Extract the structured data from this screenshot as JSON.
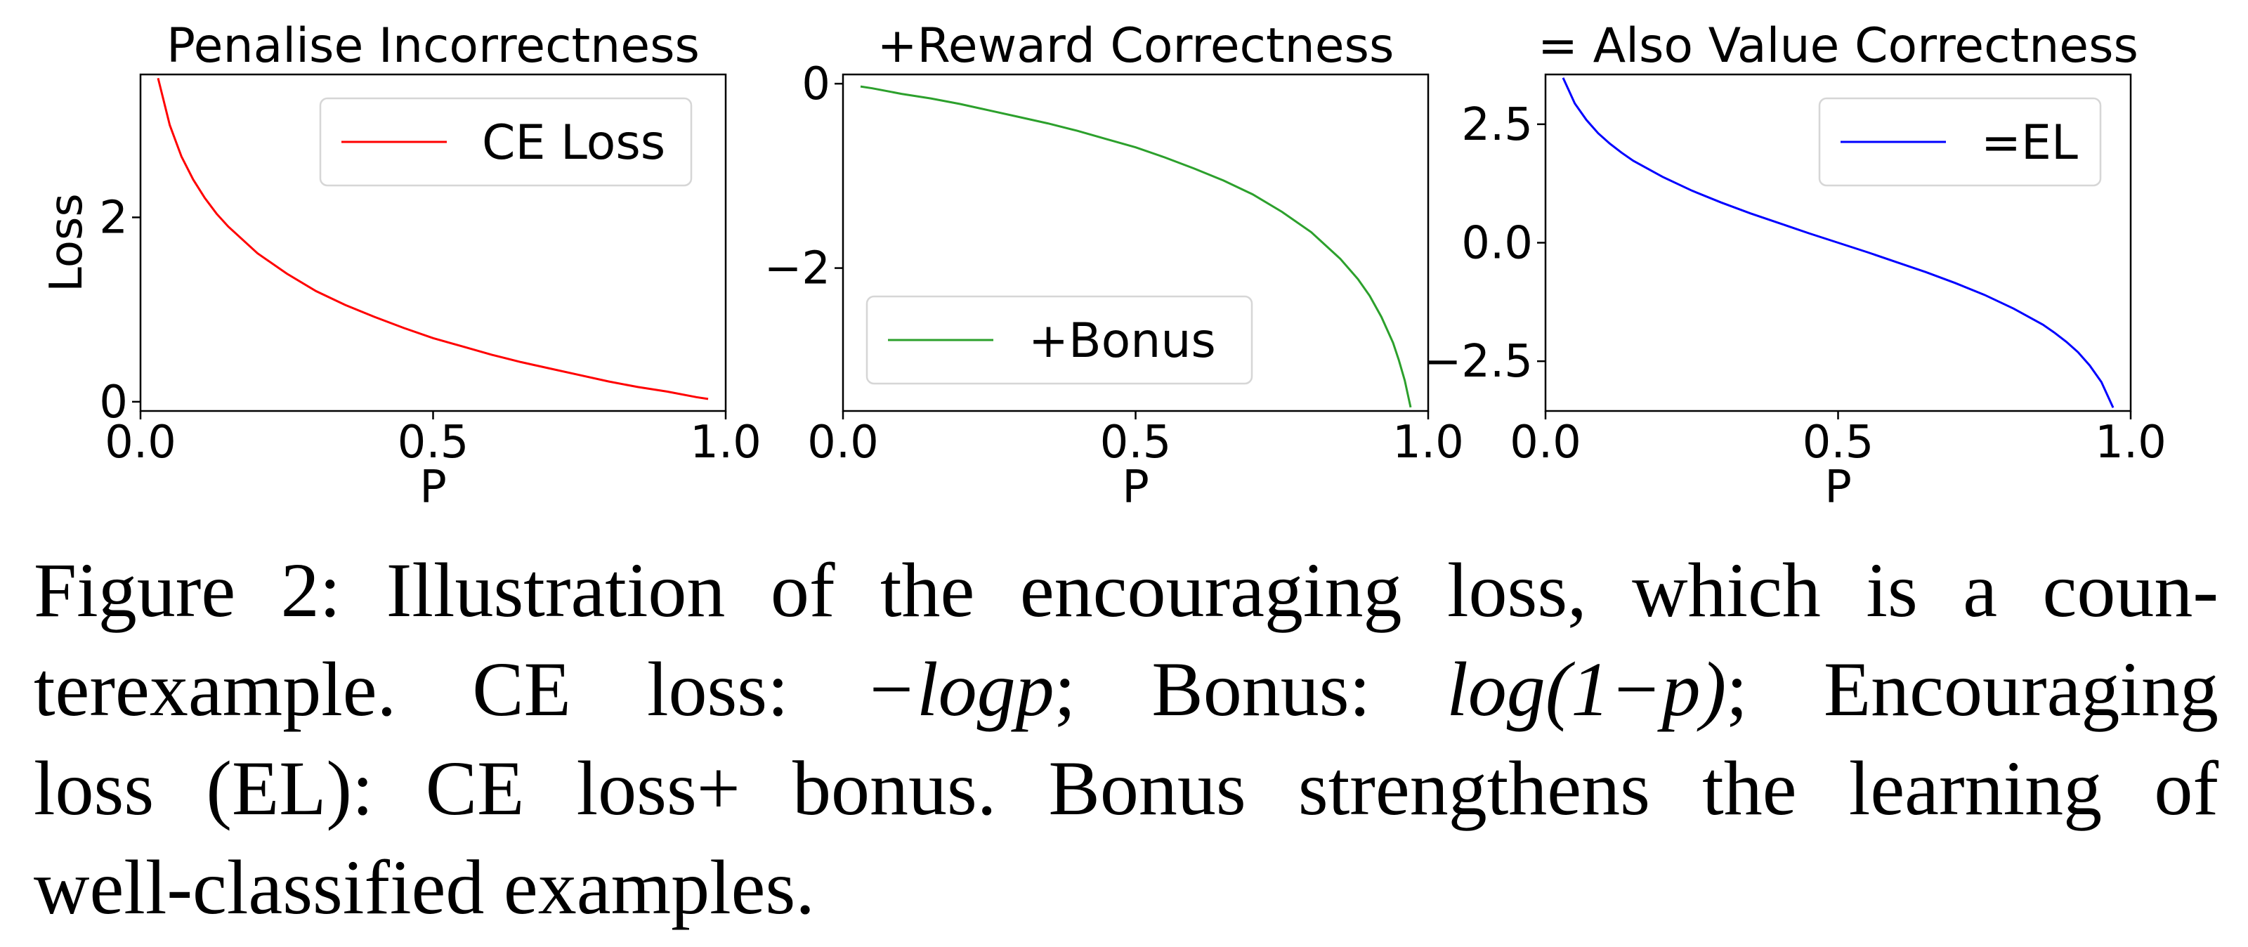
{
  "chart_data": [
    {
      "type": "line",
      "title": "Penalise Incorrectness",
      "xlabel": "P",
      "ylabel": "Loss",
      "xlim": [
        0.0,
        1.0
      ],
      "ylim": [
        -0.1,
        3.55
      ],
      "xticks": [
        "0.0",
        "0.5",
        "1.0"
      ],
      "yticks": [
        "0",
        "2"
      ],
      "ytick_values": [
        0,
        2
      ],
      "legend": "top-right",
      "series": [
        {
          "name": "CE Loss",
          "color": "#ff0000",
          "x": [
            0.03,
            0.05,
            0.07,
            0.09,
            0.11,
            0.13,
            0.15,
            0.2,
            0.25,
            0.3,
            0.35,
            0.4,
            0.45,
            0.5,
            0.55,
            0.6,
            0.65,
            0.7,
            0.75,
            0.8,
            0.85,
            0.9,
            0.95,
            0.97
          ],
          "y": [
            3.51,
            3.0,
            2.66,
            2.41,
            2.21,
            2.04,
            1.9,
            1.61,
            1.39,
            1.2,
            1.05,
            0.92,
            0.8,
            0.69,
            0.6,
            0.51,
            0.43,
            0.36,
            0.29,
            0.22,
            0.16,
            0.11,
            0.05,
            0.03
          ]
        }
      ]
    },
    {
      "type": "line",
      "title": "+Reward Correctness",
      "xlabel": "P",
      "ylabel": "",
      "xlim": [
        0.0,
        1.0
      ],
      "ylim": [
        -3.55,
        0.1
      ],
      "xticks": [
        "0.0",
        "0.5",
        "1.0"
      ],
      "yticks": [
        "0",
        "−2"
      ],
      "ytick_values": [
        0,
        -2
      ],
      "legend": "lower-left",
      "series": [
        {
          "name": "+Bonus",
          "color": "#2ca02c",
          "x": [
            0.03,
            0.05,
            0.1,
            0.15,
            0.2,
            0.25,
            0.3,
            0.35,
            0.4,
            0.45,
            0.5,
            0.55,
            0.6,
            0.65,
            0.7,
            0.75,
            0.8,
            0.85,
            0.88,
            0.9,
            0.92,
            0.94,
            0.95,
            0.96,
            0.97
          ],
          "y": [
            -0.03,
            -0.05,
            -0.11,
            -0.16,
            -0.22,
            -0.29,
            -0.36,
            -0.43,
            -0.51,
            -0.6,
            -0.69,
            -0.8,
            -0.92,
            -1.05,
            -1.2,
            -1.39,
            -1.61,
            -1.9,
            -2.12,
            -2.3,
            -2.53,
            -2.81,
            -3.0,
            -3.22,
            -3.51
          ]
        }
      ]
    },
    {
      "type": "line",
      "title": "= Also Value Correctness",
      "xlabel": "P",
      "ylabel": "",
      "xlim": [
        0.0,
        1.0
      ],
      "ylim": [
        -3.55,
        3.55
      ],
      "xticks": [
        "0.0",
        "0.5",
        "1.0"
      ],
      "yticks": [
        "2.5",
        "0.0",
        "−2.5"
      ],
      "ytick_values": [
        2.5,
        0,
        -2.5
      ],
      "legend": "top-right",
      "series": [
        {
          "name": "=EL",
          "color": "#0000ff",
          "x": [
            0.03,
            0.05,
            0.07,
            0.09,
            0.11,
            0.13,
            0.15,
            0.2,
            0.25,
            0.3,
            0.35,
            0.4,
            0.45,
            0.5,
            0.55,
            0.6,
            0.65,
            0.7,
            0.75,
            0.8,
            0.85,
            0.87,
            0.89,
            0.91,
            0.93,
            0.95,
            0.97
          ],
          "y": [
            3.48,
            2.94,
            2.59,
            2.31,
            2.09,
            1.9,
            1.73,
            1.39,
            1.1,
            0.85,
            0.62,
            0.41,
            0.2,
            0.0,
            -0.2,
            -0.41,
            -0.62,
            -0.85,
            -1.1,
            -1.39,
            -1.73,
            -1.9,
            -2.09,
            -2.31,
            -2.59,
            -2.94,
            -3.48
          ]
        }
      ]
    }
  ],
  "caption": {
    "line1": "Figure 2: Illustration of the encouraging loss, which is a coun-",
    "line2_a": "terexample. CE loss: ",
    "math1": "−logp",
    "line2_b": "; Bonus: ",
    "math2": "log(1−p)",
    "line2_c": "; Encouraging",
    "line3": "loss (EL): CE loss+ bonus. Bonus strengthens the learning of",
    "line4": "well-classified examples."
  }
}
